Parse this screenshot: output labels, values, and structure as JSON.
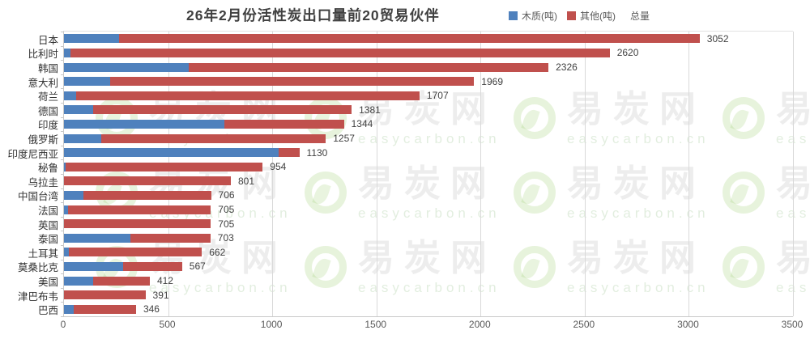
{
  "title": "26年2月份活性炭出口量前20贸易伙伴",
  "legend": {
    "items": [
      {
        "label": "木质(吨)",
        "color": "#4F81BD"
      },
      {
        "label": "其他(吨)",
        "color": "#C0504D"
      },
      {
        "label": "总量",
        "color": ""
      }
    ]
  },
  "watermark": {
    "logo": "easycarbon-leaf-logo",
    "text": "易炭网",
    "subtext": "easycarbon.cn"
  },
  "colors": {
    "wood": "#4F81BD",
    "other": "#C0504D",
    "grid": "#d9d9d9",
    "axis": "#c9c9c9",
    "value_label": "#404040",
    "tick_label": "#595959"
  },
  "chart_data": {
    "type": "bar",
    "orientation": "horizontal",
    "stacked": true,
    "title": "26年2月份活性炭出口量前20贸易伙伴",
    "categories": [
      "日本",
      "比利时",
      "韩国",
      "意大利",
      "荷兰",
      "德国",
      "印度",
      "俄罗斯",
      "印度尼西亚",
      "秘鲁",
      "乌拉圭",
      "中国台湾",
      "法国",
      "英国",
      "泰国",
      "土耳其",
      "莫桑比克",
      "美国",
      "津巴布韦",
      "巴西"
    ],
    "series": [
      {
        "name": "木质(吨)",
        "color": "#4F81BD",
        "values": [
          265,
          30,
          600,
          220,
          60,
          140,
          770,
          180,
          1030,
          8,
          0,
          95,
          20,
          0,
          320,
          25,
          285,
          140,
          0,
          45
        ]
      },
      {
        "name": "其他(吨)",
        "color": "#C0504D",
        "values": [
          2787,
          2590,
          1726,
          1749,
          1647,
          1241,
          574,
          1077,
          100,
          946,
          801,
          611,
          685,
          705,
          383,
          637,
          282,
          272,
          391,
          301
        ]
      }
    ],
    "totals": [
      3052,
      2620,
      2326,
      1969,
      1707,
      1381,
      1344,
      1257,
      1130,
      954,
      801,
      706,
      705,
      705,
      703,
      662,
      567,
      412,
      391,
      346
    ],
    "xlabel": "",
    "ylabel": "",
    "xlim": [
      0,
      3500
    ],
    "xticks": [
      0,
      500,
      1000,
      1500,
      2000,
      2500,
      3000,
      3500
    ],
    "grid": "vertical",
    "legend_position": "top-right",
    "value_labels": "total shown at end of each bar"
  }
}
